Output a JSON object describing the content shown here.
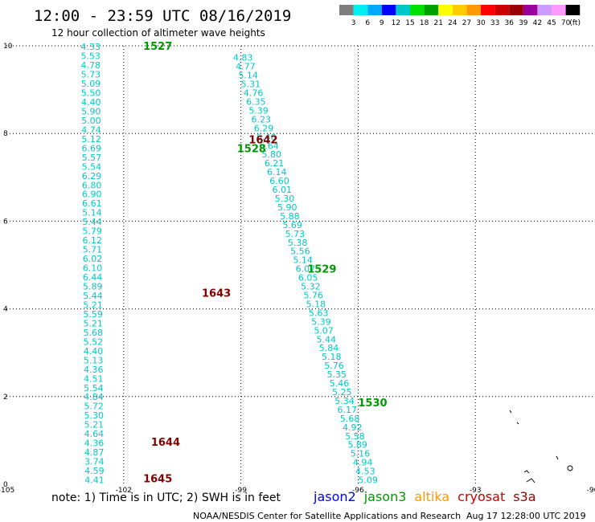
{
  "header": {
    "title": "12:00 - 23:59 UTC 08/16/2019",
    "subtitle": "12 hour collection of altimeter wave heights"
  },
  "legend": {
    "colors": [
      "#7f7f7f",
      "#00f0f0",
      "#00aaff",
      "#0000ff",
      "#00c8c8",
      "#00e000",
      "#00a000",
      "#ffff00",
      "#ffcc00",
      "#ff9900",
      "#ff0000",
      "#cc0000",
      "#990000",
      "#990099",
      "#cc99ff",
      "#ff99ff",
      "#000000"
    ],
    "labels": [
      "3",
      "6",
      "9",
      "12",
      "15",
      "18",
      "21",
      "24",
      "27",
      "30",
      "33",
      "36",
      "39",
      "42",
      "45",
      "70",
      "(ft)"
    ]
  },
  "footer": {
    "note": "note: 1) Time is in UTC; 2) SWH is in feet",
    "satellites": [
      {
        "name": "jason2",
        "color": "#0000ff"
      },
      {
        "name": "jason3",
        "color": "#009900"
      },
      {
        "name": "altika",
        "color": "#ff9900"
      },
      {
        "name": "cryosat",
        "color": "#cc0000"
      },
      {
        "name": "s3a",
        "color": "#990000"
      }
    ],
    "credit": "NOAA/NESDIS Center for Satellite Applications and Research",
    "timestamp": "Aug 17 12:28:00 UTC 2019"
  },
  "chart_data": {
    "type": "scatter",
    "xlim": [
      -105,
      -90
    ],
    "ylim": [
      0,
      10
    ],
    "x_ticks": [
      -105,
      -102,
      -99,
      -96,
      -93,
      -90
    ],
    "y_ticks": [
      0,
      2,
      4,
      6,
      8,
      10
    ],
    "grid": true,
    "value_color": "#00c8c8",
    "tracks": [
      {
        "start": [
          -103.1,
          9.98
        ],
        "end": [
          -103.0,
          0.1
        ],
        "values": [
          "4.33",
          "5.53",
          "4.78",
          "5.73",
          "5.09",
          "5.50",
          "4.40",
          "5.90",
          "5.00",
          "4.74",
          "5.12",
          "6.69",
          "5.57",
          "5.54",
          "6.29",
          "6.80",
          "6.90",
          "6.61",
          "5.14",
          "5.44",
          "5.79",
          "6.12",
          "5.71",
          "6.02",
          "6.10",
          "6.44",
          "5.89",
          "5.44",
          "5.21",
          "5.59",
          "5.21",
          "5.68",
          "5.52",
          "4.40",
          "5.13",
          "4.36",
          "4.51",
          "5.54",
          "4.84",
          "5.72",
          "5.30",
          "5.21",
          "4.64",
          "4.36",
          "4.87",
          "3.74",
          "4.59",
          "4.41"
        ]
      },
      {
        "start": [
          -99.2,
          9.73
        ],
        "end": [
          -96.0,
          0.1
        ],
        "values": [
          "4.83",
          "4.77",
          "5.14",
          "5.31",
          "4.76",
          "6.35",
          "5.39",
          "6.23",
          "6.29",
          "5.40",
          "5.64",
          "5.80",
          "6.21",
          "6.14",
          "6.60",
          "6.01",
          "5.30",
          "5.90",
          "5.88",
          "5.69",
          "5.73",
          "5.38",
          "5.56",
          "5.14",
          "6.07",
          "6.05",
          "5.32",
          "5.76",
          "5.18",
          "5.63",
          "5.39",
          "5.07",
          "5.44",
          "5.84",
          "5.18",
          "5.76",
          "5.35",
          "5.46",
          "5.25",
          "5.34",
          "6.17",
          "5.68",
          "4.92",
          "5.58",
          "5.89",
          "5.16",
          "4.94",
          "4.53",
          "5.09"
        ]
      }
    ],
    "pass_labels": [
      {
        "text": "1527",
        "x": -101.5,
        "y": 9.98,
        "color": "#009900"
      },
      {
        "text": "1642",
        "x": -98.8,
        "y": 7.85,
        "color": "#800000"
      },
      {
        "text": "1528",
        "x": -99.1,
        "y": 7.65,
        "color": "#009900"
      },
      {
        "text": "1529",
        "x": -97.3,
        "y": 4.9,
        "color": "#009900"
      },
      {
        "text": "1643",
        "x": -100.0,
        "y": 4.35,
        "color": "#800000"
      },
      {
        "text": "1530",
        "x": -96.0,
        "y": 1.85,
        "color": "#009900"
      },
      {
        "text": "1644",
        "x": -101.3,
        "y": 0.95,
        "color": "#800000"
      },
      {
        "text": "1645",
        "x": -101.5,
        "y": 0.12,
        "color": "#800000"
      }
    ]
  }
}
